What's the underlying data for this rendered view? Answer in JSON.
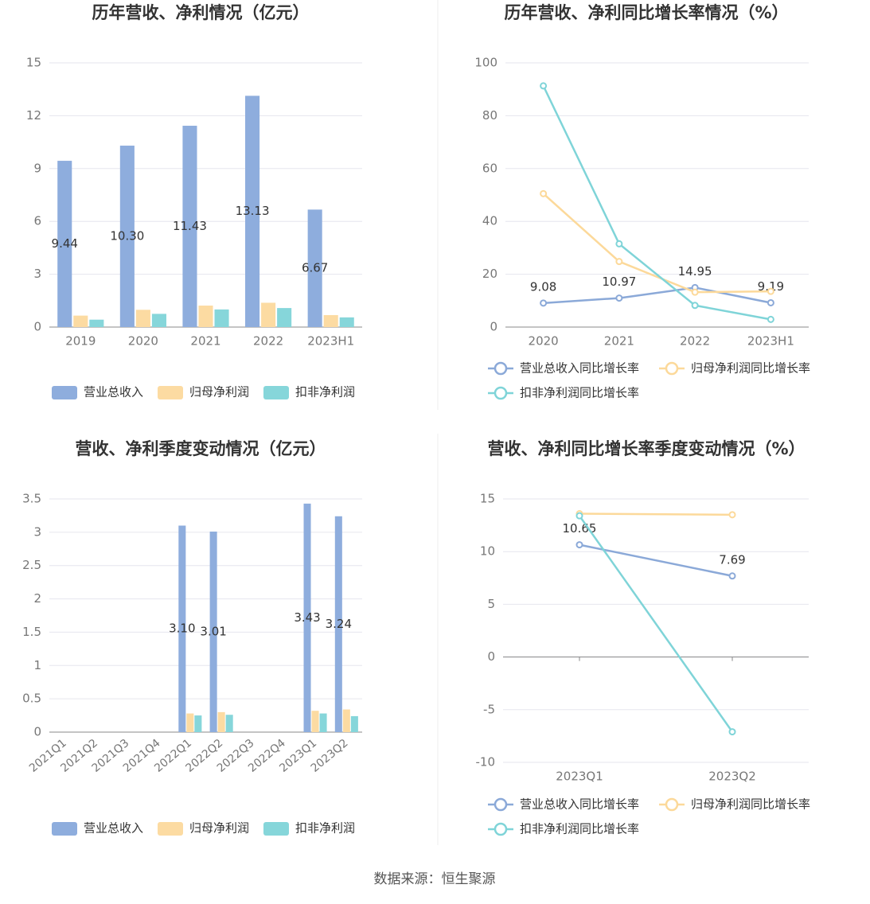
{
  "chart_data": [
    {
      "type": "bar",
      "title": "历年营收、净利情况（亿元）",
      "categories": [
        "2019",
        "2020",
        "2021",
        "2022",
        "2023H1"
      ],
      "series": [
        {
          "name": "营业总收入",
          "color": "#8eaddd",
          "values": [
            9.44,
            10.3,
            11.43,
            13.13,
            6.67
          ],
          "value_labels": [
            "9.44",
            "10.30",
            "11.43",
            "13.13",
            "6.67"
          ],
          "data_labels": true
        },
        {
          "name": "归母净利润",
          "color": "#fcdba2",
          "values": [
            0.65,
            0.98,
            1.22,
            1.38,
            0.68
          ]
        },
        {
          "name": "扣非净利润",
          "color": "#86d6da",
          "values": [
            0.42,
            0.75,
            1.0,
            1.08,
            0.55
          ]
        }
      ],
      "ylim": [
        0,
        15
      ],
      "yticks": [
        0,
        3,
        6,
        9,
        12,
        15
      ],
      "grid": true
    },
    {
      "type": "line",
      "title": "历年营收、净利同比增长率情况（%）",
      "categories": [
        "2020",
        "2021",
        "2022",
        "2023H1"
      ],
      "series": [
        {
          "name": "营业总收入同比增长率",
          "color": "#8ba9d8",
          "values": [
            9.08,
            10.97,
            14.95,
            9.19
          ],
          "data_labels": true
        },
        {
          "name": "归母净利润同比增长率",
          "color": "#fcd99a",
          "values": [
            50.5,
            24.8,
            13.2,
            13.5
          ]
        },
        {
          "name": "扣非净利润同比增长率",
          "color": "#7fd4d8",
          "values": [
            91.3,
            31.5,
            8.2,
            2.9
          ]
        }
      ],
      "ylim": [
        0,
        100
      ],
      "yticks": [
        0,
        20,
        40,
        60,
        80,
        100
      ],
      "grid": true
    },
    {
      "type": "bar",
      "title": "营收、净利季度变动情况（亿元）",
      "categories": [
        "2021Q1",
        "2021Q2",
        "2021Q3",
        "2021Q4",
        "2022Q1",
        "2022Q2",
        "2022Q3",
        "2022Q4",
        "2023Q1",
        "2023Q2"
      ],
      "series": [
        {
          "name": "营业总收入",
          "color": "#8eaddd",
          "values": [
            null,
            null,
            null,
            null,
            3.1,
            3.01,
            null,
            null,
            3.43,
            3.24
          ],
          "value_labels": [
            null,
            null,
            null,
            null,
            "3.10",
            "3.01",
            null,
            null,
            "3.43",
            "3.24"
          ],
          "data_labels": true
        },
        {
          "name": "归母净利润",
          "color": "#fcdba2",
          "values": [
            null,
            null,
            null,
            null,
            0.28,
            0.3,
            null,
            null,
            0.32,
            0.34
          ]
        },
        {
          "name": "扣非净利润",
          "color": "#86d6da",
          "values": [
            null,
            null,
            null,
            null,
            0.25,
            0.26,
            null,
            null,
            0.28,
            0.24
          ]
        }
      ],
      "ylim": [
        0,
        3.5
      ],
      "yticks": [
        0,
        0.5,
        1,
        1.5,
        2,
        2.5,
        3,
        3.5
      ],
      "grid": true
    },
    {
      "type": "line",
      "title": "营收、净利同比增长率季度变动情况（%）",
      "categories": [
        "2023Q1",
        "2023Q2"
      ],
      "series": [
        {
          "name": "营业总收入同比增长率",
          "color": "#8ba9d8",
          "values": [
            10.65,
            7.69
          ],
          "data_labels": true
        },
        {
          "name": "归母净利润同比增长率",
          "color": "#fcd99a",
          "values": [
            13.6,
            13.5
          ]
        },
        {
          "name": "扣非净利润同比增长率",
          "color": "#7fd4d8",
          "values": [
            13.4,
            -7.1
          ]
        }
      ],
      "ylim": [
        -10,
        15
      ],
      "yticks": [
        -10,
        -5,
        0,
        5,
        10,
        15
      ],
      "grid": true
    }
  ],
  "source": "数据来源：恒生聚源"
}
